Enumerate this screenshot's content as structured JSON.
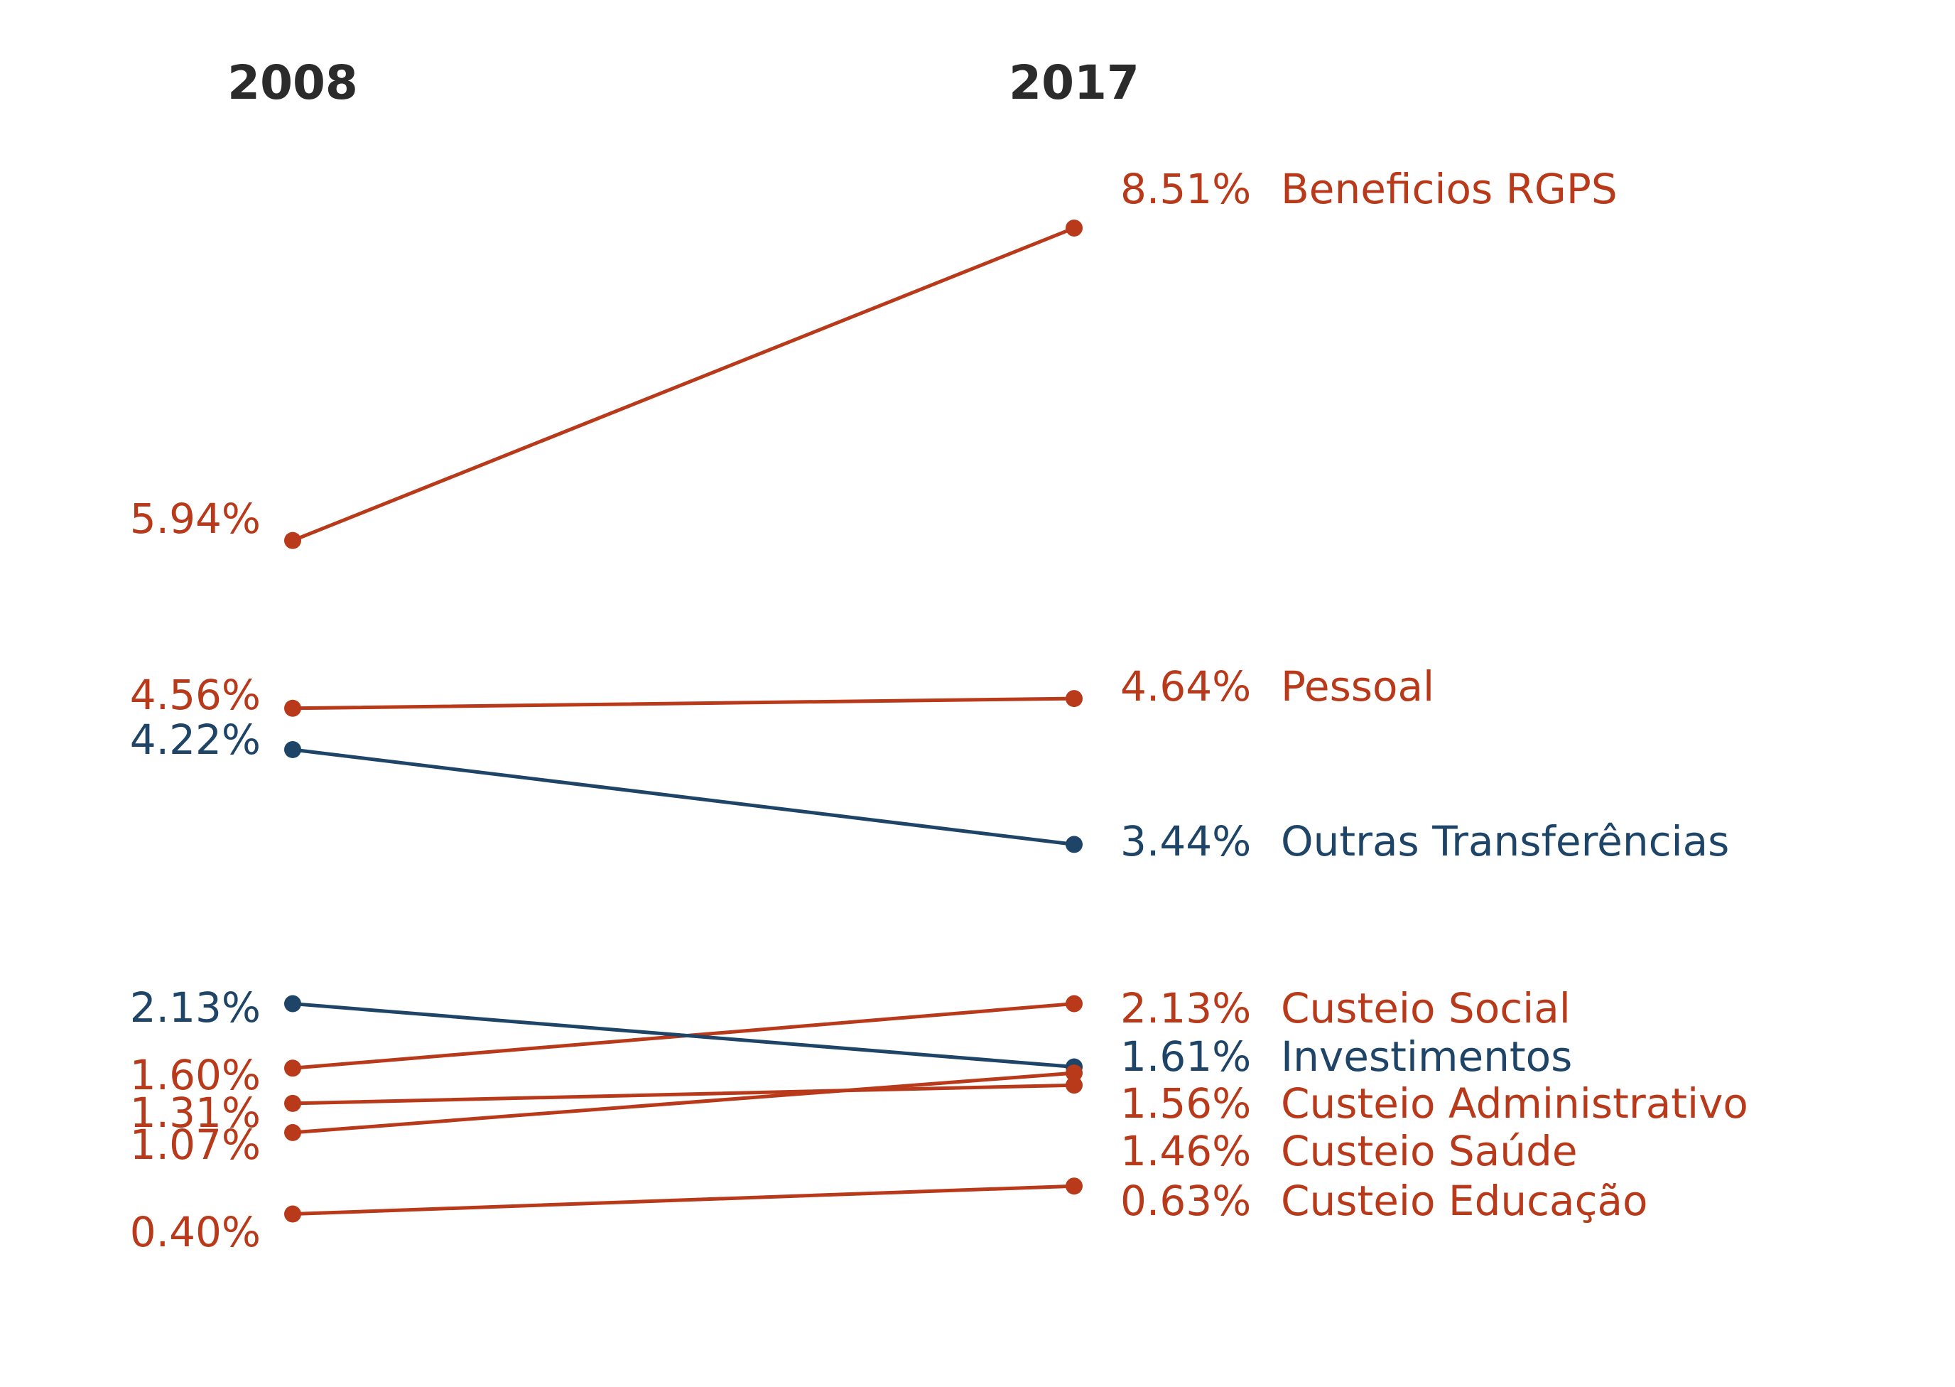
{
  "chart_data": {
    "type": "line",
    "subtype": "slope",
    "title": "",
    "xlabel": "",
    "ylabel": "",
    "x": [
      "2008",
      "2017"
    ],
    "ylim": [
      0,
      9
    ],
    "grid": false,
    "colors": {
      "orange": "#B83A1B",
      "blue": "#1E4467"
    },
    "series": [
      {
        "name": "Beneficios RGPS",
        "values": [
          5.94,
          8.51
        ],
        "start_label": "5.94%",
        "end_label": "8.51%",
        "color": "#B83A1B"
      },
      {
        "name": "Pessoal",
        "values": [
          4.56,
          4.64
        ],
        "start_label": "4.56%",
        "end_label": "4.64%",
        "color": "#B83A1B"
      },
      {
        "name": "Outras Transferências",
        "values": [
          4.22,
          3.44
        ],
        "start_label": "4.22%",
        "end_label": "3.44%",
        "color": "#1E4467"
      },
      {
        "name": "Custeio Social",
        "values": [
          1.6,
          2.13
        ],
        "start_label": "1.60%",
        "end_label": "2.13%",
        "color": "#B83A1B"
      },
      {
        "name": "Investimentos",
        "values": [
          2.13,
          1.61
        ],
        "start_label": "2.13%",
        "end_label": "1.61%",
        "color": "#1E4467"
      },
      {
        "name": "Custeio Administrativo",
        "values": [
          1.07,
          1.56
        ],
        "start_label": "1.07%",
        "end_label": "1.56%",
        "color": "#B83A1B"
      },
      {
        "name": "Custeio Saúde",
        "values": [
          1.31,
          1.46
        ],
        "start_label": "1.31%",
        "end_label": "1.46%",
        "color": "#B83A1B"
      },
      {
        "name": "Custeio Educação",
        "values": [
          0.4,
          0.63
        ],
        "start_label": "0.40%",
        "end_label": "0.63%",
        "color": "#B83A1B"
      }
    ]
  }
}
